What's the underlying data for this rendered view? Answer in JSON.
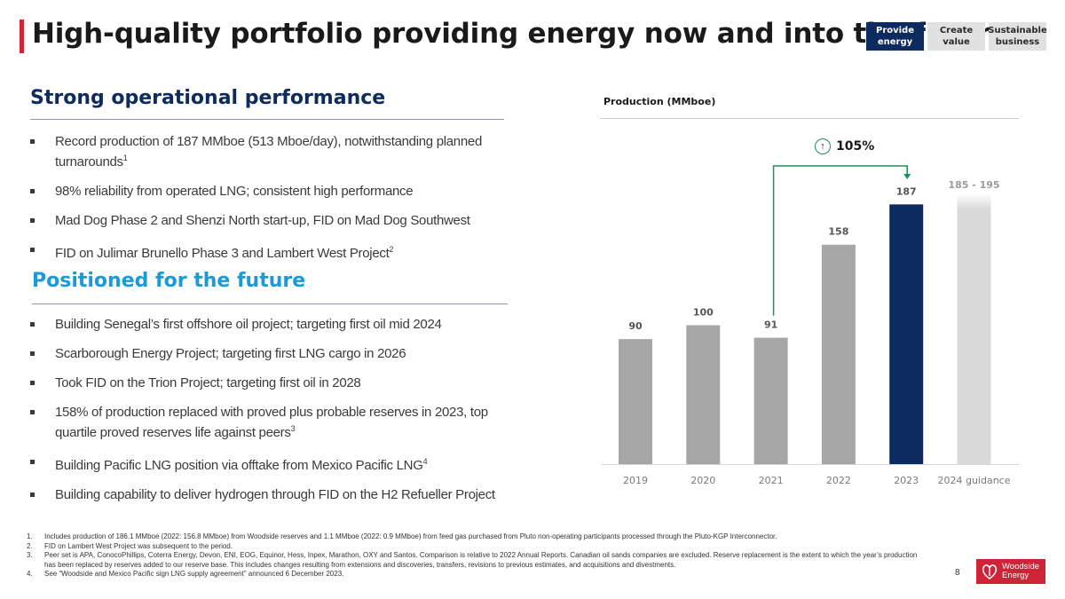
{
  "header": {
    "title": "High-quality portfolio providing energy now and into the future",
    "tabs": [
      {
        "label": "Provide energy",
        "active": true
      },
      {
        "label": "Create value",
        "active": false
      },
      {
        "label": "Sustainable business",
        "active": false
      }
    ]
  },
  "section1": {
    "heading": "Strong operational performance",
    "bullets": [
      {
        "text": "Record production of 187 MMboe (513 Mboe/day), notwithstanding planned turnarounds",
        "sup": "1"
      },
      {
        "text": "98% reliability from operated LNG; consistent high performance",
        "sup": ""
      },
      {
        "text": "Mad Dog Phase 2 and Shenzi North start-up, FID on Mad Dog Southwest",
        "sup": ""
      },
      {
        "text": "FID on Julimar Brunello Phase 3 and Lambert West Project",
        "sup": "2"
      }
    ]
  },
  "section2": {
    "heading": "Positioned for the future",
    "bullets": [
      {
        "text": "Building Senegal’s first offshore oil project; targeting first oil mid 2024",
        "sup": ""
      },
      {
        "text": "Scarborough Energy Project; targeting first LNG cargo in 2026",
        "sup": ""
      },
      {
        "text": "Took FID on the Trion Project; targeting first oil in 2028",
        "sup": ""
      },
      {
        "text": "158% of production replaced with proved plus probable reserves in 2023, top quartile proved reserves life against peers",
        "sup": "3"
      },
      {
        "text": "Building Pacific LNG position via offtake from Mexico Pacific LNG",
        "sup": "4"
      },
      {
        "text": "Building capability to deliver hydrogen through FID on the H2 Refueller Project",
        "sup": ""
      }
    ]
  },
  "chart_data": {
    "type": "bar",
    "title": "Production (MMboe)",
    "categories": [
      "2019",
      "2020",
      "2021",
      "2022",
      "2023",
      "2024 guidance"
    ],
    "values": [
      90,
      100,
      91,
      158,
      187,
      195
    ],
    "labels": [
      "90",
      "100",
      "91",
      "158",
      "187",
      "185 - 195"
    ],
    "guidance_range": [
      185,
      195
    ],
    "bar_colors": [
      "#a6a6a6",
      "#a6a6a6",
      "#a6a6a6",
      "#a6a6a6",
      "#0d2b5e",
      "#d9d9d9"
    ],
    "growth_annotation": {
      "label": "105%",
      "from": "2021",
      "to": "2023"
    },
    "ylim": [
      0,
      200
    ],
    "xlabel": "",
    "ylabel": ""
  },
  "footnotes": [
    {
      "num": "1.",
      "text": "Includes production of 186.1 MMboe (2022: 156.8 MMboe) from Woodside reserves and 1.1 MMboe (2022: 0.9 MMboe) from feed gas purchased from Pluto non-operating participants processed through the Pluto-KGP Interconnector."
    },
    {
      "num": "2.",
      "text": "FID on Lambert West Project was subsequent to the period."
    },
    {
      "num": "3.",
      "text": "Peer set is APA, ConocoPhillips, Coterra Energy, Devon, ENI, EOG, Equinor, Hess, Inpex, Marathon, OXY and Santos. Comparison is relative to 2022 Annual Reports. Canadian oil sands companies are excluded. Reserve replacement is the extent to which the year’s production has been replaced by reserves added to our reserve base. This includes changes resulting from extensions and discoveries, transfers, revisions to previous estimates, and acquisitions and divestments."
    },
    {
      "num": "4.",
      "text": "See “Woodside and Mexico Pacific sign LNG supply agreement” announced 6 December 2023."
    }
  ],
  "page_number": "8",
  "logo": {
    "line1": "Woodside",
    "line2": "Energy"
  },
  "colors": {
    "accent_red": "#d0263a",
    "navy": "#0d2b5e",
    "cyan": "#1a9ad6",
    "green": "#1f8f57",
    "grey_bar": "#a6a6a6",
    "light_bar": "#d9d9d9"
  }
}
